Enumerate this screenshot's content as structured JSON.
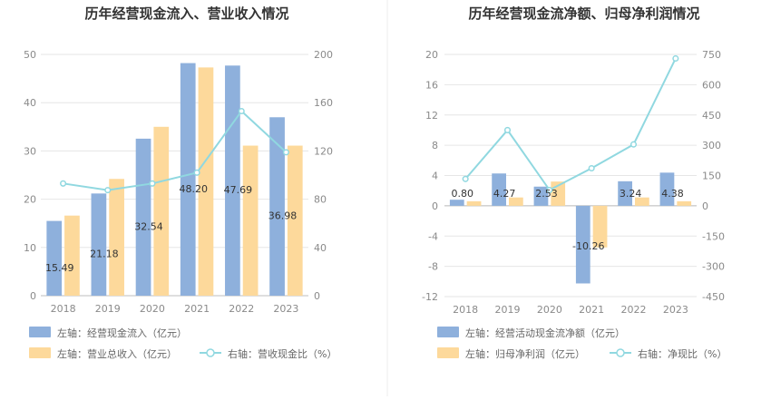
{
  "chart_data": [
    {
      "type": "bar",
      "title": "历年经营现金流入、营业收入情况",
      "categories": [
        "2018",
        "2019",
        "2020",
        "2021",
        "2022",
        "2023"
      ],
      "y_left": {
        "min": 0,
        "max": 50,
        "ticks": [
          0,
          10,
          20,
          30,
          40,
          50
        ]
      },
      "y_right": {
        "min": 0,
        "max": 200,
        "ticks": [
          0,
          40,
          80,
          120,
          160,
          200
        ]
      },
      "grid": true,
      "legend_position": "bottom-left",
      "series": [
        {
          "name": "左轴：经营现金流入（亿元）",
          "kind": "bar",
          "axis": "left",
          "color": "#8eb0dc",
          "values": [
            15.49,
            21.18,
            32.54,
            48.2,
            47.69,
            36.98
          ],
          "labels": [
            "15.49",
            "21.18",
            "32.54",
            "48.20",
            "47.69",
            "36.98"
          ]
        },
        {
          "name": "左轴：营业总收入（亿元）",
          "kind": "bar",
          "axis": "left",
          "color": "#fdd99b",
          "values": [
            16.6,
            24.2,
            35.0,
            47.3,
            31.1,
            31.1
          ]
        },
        {
          "name": "右轴：营收现金比（%）",
          "kind": "line",
          "axis": "right",
          "color": "#90d8e0",
          "values": [
            93,
            87.5,
            93,
            102,
            153,
            118.9
          ]
        }
      ]
    },
    {
      "type": "bar",
      "title": "历年经营现金流净额、归母净利润情况",
      "categories": [
        "2018",
        "2019",
        "2020",
        "2021",
        "2022",
        "2023"
      ],
      "y_left": {
        "min": -12,
        "max": 20,
        "ticks": [
          -12,
          -8,
          -4,
          0,
          4,
          8,
          12,
          16,
          20
        ]
      },
      "y_right": {
        "min": -450,
        "max": 750,
        "ticks": [
          -450,
          -300,
          -150,
          0,
          150,
          300,
          450,
          600,
          750
        ]
      },
      "grid": true,
      "legend_position": "bottom-left",
      "series": [
        {
          "name": "左轴：经营活动现金流净额（亿元）",
          "kind": "bar",
          "axis": "left",
          "color": "#8eb0dc",
          "values": [
            0.8,
            4.27,
            2.53,
            -10.26,
            3.24,
            4.38
          ],
          "labels": [
            "0.80",
            "4.27",
            "2.53",
            "-10.26",
            "3.24",
            "4.38"
          ]
        },
        {
          "name": "左轴：归母净利润（亿元）",
          "kind": "bar",
          "axis": "left",
          "color": "#fdd99b",
          "values": [
            0.6,
            1.1,
            3.2,
            -5.5,
            1.1,
            0.6
          ]
        },
        {
          "name": "右轴：净现比（%）",
          "kind": "line",
          "axis": "right",
          "color": "#90d8e0",
          "values": [
            133,
            375,
            78,
            186,
            304,
            730
          ]
        }
      ]
    }
  ]
}
